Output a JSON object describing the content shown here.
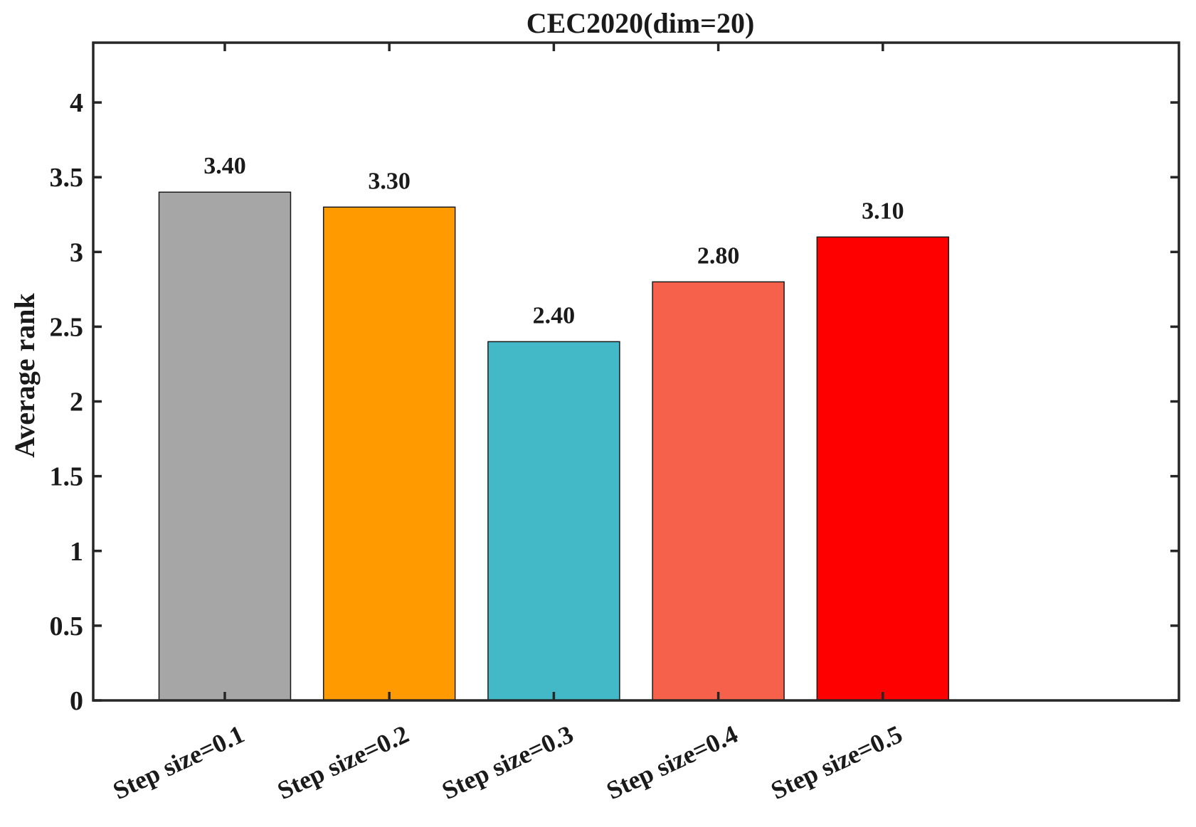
{
  "chart_data": {
    "type": "bar",
    "title": "CEC2020(dim=20)",
    "xlabel": "",
    "ylabel": "Average rank",
    "categories": [
      "Step size=0.1",
      "Step size=0.2",
      "Step size=0.3",
      "Step size=0.4",
      "Step size=0.5"
    ],
    "values": [
      3.4,
      3.3,
      2.4,
      2.8,
      3.1
    ],
    "value_labels": [
      "3.40",
      "3.30",
      "2.40",
      "2.80",
      "3.10"
    ],
    "colors": [
      "#a6a6a6",
      "#ff9a00",
      "#43b8c7",
      "#f5614a",
      "#ff0000"
    ],
    "ylim": [
      0,
      4.4
    ],
    "yticks": [
      0,
      0.5,
      1,
      1.5,
      2,
      2.5,
      3,
      3.5,
      4
    ],
    "ytick_labels": [
      "0",
      "0.5",
      "1",
      "1.5",
      "2",
      "2.5",
      "3",
      "3.5",
      "4"
    ],
    "grid": false,
    "legend": "none"
  }
}
